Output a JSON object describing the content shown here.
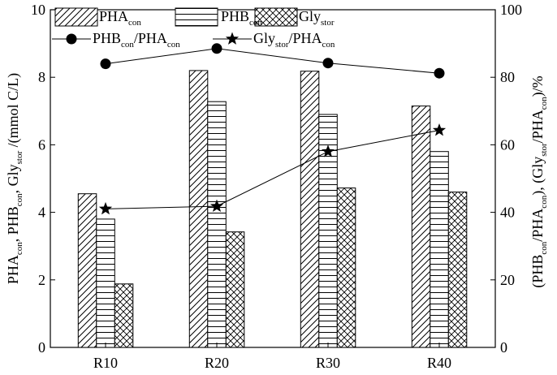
{
  "chart_data": {
    "type": "bar",
    "title": "",
    "categories": [
      "R10",
      "R20",
      "R30",
      "R40"
    ],
    "ylim": [
      0,
      10
    ],
    "yticks": [
      0,
      2,
      4,
      6,
      8,
      10
    ],
    "y2lim": [
      0,
      100
    ],
    "y2ticks": [
      0,
      20,
      40,
      60,
      80,
      100
    ],
    "bar_series": [
      {
        "name": "PHA_con",
        "pattern": "diagonal-hatch",
        "values": [
          4.55,
          8.2,
          8.18,
          7.15
        ]
      },
      {
        "name": "PHB_con",
        "pattern": "horizontal-lines",
        "values": [
          3.8,
          7.28,
          6.9,
          5.8
        ]
      },
      {
        "name": "Gly_stor",
        "pattern": "cross-hatch",
        "values": [
          1.88,
          3.42,
          4.72,
          4.6
        ]
      }
    ],
    "line_series": [
      {
        "name": "PHB_con/PHA_con",
        "marker": "circle",
        "axis": "right",
        "values": [
          84,
          88.5,
          84.2,
          81.2
        ]
      },
      {
        "name": "Gly_stor/PHA_con",
        "marker": "star",
        "axis": "right",
        "values": [
          41,
          41.8,
          58,
          64.3
        ]
      }
    ],
    "ylabel": "PHAcon, PHBcon, Glystor /(mmol C/L)",
    "y2label": "(PHBcon/PHAcon), (Glystor/PHAcon)/%",
    "legend_position": "top-left",
    "grid": false
  },
  "labels": {
    "legend": {
      "pha": {
        "base": "PHA",
        "sub": "con"
      },
      "phb": {
        "base": "PHB",
        "sub": "con"
      },
      "gly": {
        "base": "Gly",
        "sub": "stor"
      },
      "ratio1": {
        "a": "PHB",
        "a_sub": "con",
        "sep": "/PHA",
        "b_sub": "con"
      },
      "ratio2": {
        "a": "Gly",
        "a_sub": "stor",
        "sep": "/PHA",
        "b_sub": "con"
      }
    },
    "ylabel": {
      "p1": "PHA",
      "s1": "con",
      "p2": ", PHB",
      "s2": "con",
      "p3": ", Gly",
      "s3": "stor",
      "p4": " /(mmol C/L)"
    },
    "y2label": {
      "p1": "(PHB",
      "s1": "con",
      "p2": "/PHA",
      "s2": "con",
      "p3": "), (Gly",
      "s3": "stor",
      "p4": "/PHA",
      "s4": "con",
      "p5": ")/%"
    }
  }
}
